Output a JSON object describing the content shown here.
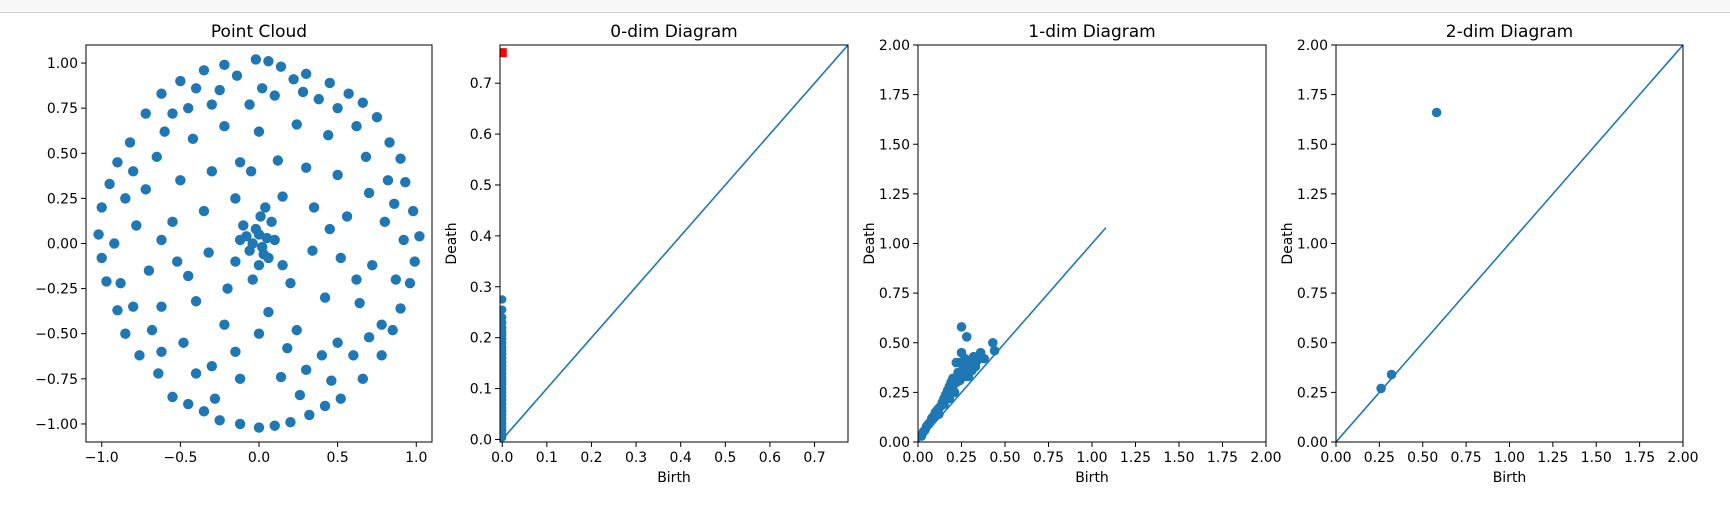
{
  "chart_data": [
    {
      "type": "scatter",
      "title": "Point Cloud",
      "xlabel": "",
      "ylabel": "",
      "xlim": [
        -1.1,
        1.1
      ],
      "ylim": [
        -1.1,
        1.1
      ],
      "xticks": [
        -1.0,
        -0.5,
        0.0,
        0.5,
        1.0
      ],
      "xtick_labels": [
        "−1.0",
        "−0.5",
        "0.0",
        "0.5",
        "1.0"
      ],
      "yticks": [
        -1.0,
        -0.75,
        -0.5,
        -0.25,
        0.0,
        0.25,
        0.5,
        0.75,
        1.0
      ],
      "ytick_labels": [
        "−1.00",
        "−0.75",
        "−0.50",
        "−0.25",
        "0.00",
        "0.25",
        "0.50",
        "0.75",
        "1.00"
      ],
      "grid": false,
      "color": "#1f77b4",
      "points": [
        [
          -0.02,
          1.02
        ],
        [
          0.06,
          1.01
        ],
        [
          -0.22,
          0.99
        ],
        [
          0.14,
          0.98
        ],
        [
          -0.35,
          0.96
        ],
        [
          0.3,
          0.94
        ],
        [
          -0.5,
          0.9
        ],
        [
          0.45,
          0.89
        ],
        [
          -0.62,
          0.83
        ],
        [
          0.57,
          0.83
        ],
        [
          -0.14,
          0.93
        ],
        [
          0.22,
          0.91
        ],
        [
          -0.4,
          0.86
        ],
        [
          0.38,
          0.8
        ],
        [
          0.66,
          0.78
        ],
        [
          -0.72,
          0.72
        ],
        [
          0.75,
          0.7
        ],
        [
          -0.3,
          0.77
        ],
        [
          0.1,
          0.82
        ],
        [
          0.02,
          0.86
        ],
        [
          -0.06,
          0.77
        ],
        [
          0.5,
          0.75
        ],
        [
          -0.55,
          0.72
        ],
        [
          -0.82,
          0.56
        ],
        [
          0.83,
          0.56
        ],
        [
          -0.9,
          0.45
        ],
        [
          0.9,
          0.47
        ],
        [
          -0.95,
          0.33
        ],
        [
          0.93,
          0.34
        ],
        [
          -1.0,
          0.2
        ],
        [
          0.98,
          0.18
        ],
        [
          -1.02,
          0.05
        ],
        [
          1.02,
          0.04
        ],
        [
          -1.0,
          -0.08
        ],
        [
          0.99,
          -0.1
        ],
        [
          -0.97,
          -0.21
        ],
        [
          0.96,
          -0.22
        ],
        [
          -0.9,
          -0.37
        ],
        [
          0.9,
          -0.36
        ],
        [
          -0.85,
          -0.5
        ],
        [
          0.85,
          -0.48
        ],
        [
          -0.76,
          -0.62
        ],
        [
          0.78,
          -0.62
        ],
        [
          -0.64,
          -0.72
        ],
        [
          0.66,
          -0.75
        ],
        [
          -0.55,
          -0.85
        ],
        [
          0.52,
          -0.86
        ],
        [
          -0.45,
          -0.89
        ],
        [
          0.42,
          -0.9
        ],
        [
          -0.25,
          -0.98
        ],
        [
          0.2,
          -0.99
        ],
        [
          -0.12,
          -1.0
        ],
        [
          0.1,
          -1.01
        ],
        [
          0.0,
          -1.02
        ],
        [
          -0.35,
          -0.93
        ],
        [
          0.32,
          -0.95
        ],
        [
          -0.65,
          0.48
        ],
        [
          0.68,
          0.48
        ],
        [
          -0.72,
          0.3
        ],
        [
          0.7,
          0.28
        ],
        [
          -0.78,
          0.1
        ],
        [
          0.8,
          0.12
        ],
        [
          -0.7,
          -0.15
        ],
        [
          0.72,
          -0.12
        ],
        [
          -0.62,
          -0.35
        ],
        [
          0.64,
          -0.33
        ],
        [
          -0.48,
          -0.55
        ],
        [
          0.5,
          -0.55
        ],
        [
          -0.3,
          -0.68
        ],
        [
          0.3,
          -0.7
        ],
        [
          -0.12,
          -0.75
        ],
        [
          0.14,
          -0.74
        ],
        [
          -0.42,
          0.58
        ],
        [
          0.44,
          0.6
        ],
        [
          -0.22,
          0.65
        ],
        [
          0.24,
          0.66
        ],
        [
          0.0,
          0.62
        ],
        [
          -0.5,
          0.35
        ],
        [
          0.5,
          0.38
        ],
        [
          -0.55,
          0.12
        ],
        [
          0.56,
          0.15
        ],
        [
          -0.52,
          -0.1
        ],
        [
          0.52,
          -0.08
        ],
        [
          -0.4,
          -0.32
        ],
        [
          0.42,
          -0.3
        ],
        [
          -0.22,
          -0.45
        ],
        [
          0.24,
          -0.48
        ],
        [
          0.0,
          -0.5
        ],
        [
          -0.3,
          0.4
        ],
        [
          0.3,
          0.42
        ],
        [
          -0.35,
          0.18
        ],
        [
          0.35,
          0.2
        ],
        [
          -0.32,
          -0.05
        ],
        [
          0.34,
          -0.04
        ],
        [
          -0.2,
          -0.25
        ],
        [
          0.2,
          -0.22
        ],
        [
          -0.12,
          0.45
        ],
        [
          0.12,
          0.46
        ],
        [
          -0.15,
          0.25
        ],
        [
          0.15,
          0.26
        ],
        [
          -0.1,
          0.1
        ],
        [
          0.08,
          0.12
        ],
        [
          0.0,
          0.05
        ],
        [
          0.02,
          -0.02
        ],
        [
          -0.04,
          0.0
        ],
        [
          0.05,
          0.03
        ],
        [
          -0.02,
          0.08
        ],
        [
          0.03,
          -0.06
        ],
        [
          -0.06,
          -0.04
        ],
        [
          0.06,
          -0.08
        ],
        [
          -0.08,
          0.04
        ],
        [
          0.01,
          0.15
        ],
        [
          0.0,
          -0.12
        ],
        [
          -0.15,
          -0.1
        ],
        [
          0.15,
          -0.12
        ],
        [
          0.1,
          0.02
        ],
        [
          -0.12,
          0.02
        ],
        [
          0.04,
          0.2
        ],
        [
          -0.04,
          -0.2
        ],
        [
          -0.85,
          0.25
        ],
        [
          0.86,
          0.22
        ],
        [
          -0.88,
          -0.22
        ],
        [
          0.87,
          -0.2
        ],
        [
          -0.6,
          0.62
        ],
        [
          0.62,
          0.65
        ],
        [
          -0.62,
          -0.6
        ],
        [
          0.6,
          -0.62
        ],
        [
          -0.8,
          0.4
        ],
        [
          0.78,
          -0.45
        ],
        [
          -0.25,
          0.85
        ],
        [
          0.28,
          0.84
        ],
        [
          -0.28,
          -0.86
        ],
        [
          0.26,
          -0.84
        ],
        [
          -0.45,
          0.75
        ],
        [
          0.46,
          -0.76
        ],
        [
          -0.15,
          -0.6
        ],
        [
          0.18,
          -0.58
        ],
        [
          -0.4,
          -0.72
        ],
        [
          0.4,
          -0.62
        ],
        [
          -0.68,
          -0.48
        ],
        [
          0.7,
          -0.52
        ],
        [
          -0.05,
          0.4
        ],
        [
          0.06,
          -0.38
        ],
        [
          -0.45,
          -0.18
        ],
        [
          0.45,
          0.08
        ],
        [
          -0.62,
          0.02
        ],
        [
          0.62,
          -0.2
        ],
        [
          0.82,
          0.35
        ],
        [
          -0.8,
          -0.35
        ],
        [
          0.92,
          0.02
        ],
        [
          -0.92,
          0.0
        ]
      ]
    },
    {
      "type": "scatter",
      "title": "0-dim Diagram",
      "xlabel": "Birth",
      "ylabel": "Death",
      "xlim": [
        -0.005,
        0.775
      ],
      "ylim": [
        -0.005,
        0.775
      ],
      "xticks": [
        0,
        0.1,
        0.2,
        0.3,
        0.4,
        0.5,
        0.6,
        0.7
      ],
      "xtick_labels": [
        "0.0",
        "0.1",
        "0.2",
        "0.3",
        "0.4",
        "0.5",
        "0.6",
        "0.7"
      ],
      "yticks": [
        0,
        0.1,
        0.2,
        0.3,
        0.4,
        0.5,
        0.6,
        0.7
      ],
      "ytick_labels": [
        "0.0",
        "0.1",
        "0.2",
        "0.3",
        "0.4",
        "0.5",
        "0.6",
        "0.7"
      ],
      "diagonal": [
        0,
        0.775
      ],
      "color": "#1f77b4",
      "points": [
        [
          0,
          0.275
        ],
        [
          0,
          0.255
        ],
        [
          0,
          0.24
        ],
        [
          0,
          0.23
        ],
        [
          0,
          0.22
        ],
        [
          0,
          0.212
        ],
        [
          0,
          0.205
        ],
        [
          0,
          0.198
        ],
        [
          0,
          0.19
        ],
        [
          0,
          0.182
        ],
        [
          0,
          0.175
        ],
        [
          0,
          0.168
        ],
        [
          0,
          0.16
        ],
        [
          0,
          0.152
        ],
        [
          0,
          0.145
        ],
        [
          0,
          0.138
        ],
        [
          0,
          0.13
        ],
        [
          0,
          0.122
        ],
        [
          0,
          0.115
        ],
        [
          0,
          0.108
        ],
        [
          0,
          0.1
        ],
        [
          0,
          0.092
        ],
        [
          0,
          0.085
        ],
        [
          0,
          0.078
        ],
        [
          0,
          0.07
        ],
        [
          0,
          0.062
        ],
        [
          0,
          0.055
        ],
        [
          0,
          0.048
        ],
        [
          0,
          0.04
        ],
        [
          0,
          0.032
        ],
        [
          0,
          0.025
        ],
        [
          0,
          0.018
        ],
        [
          0,
          0.01
        ],
        [
          0,
          0.004
        ]
      ],
      "infinite_points": [
        [
          0,
          0.76
        ]
      ],
      "infinite_color": "#ff0000"
    },
    {
      "type": "scatter",
      "title": "1-dim Diagram",
      "xlabel": "Birth",
      "ylabel": "Death",
      "xlim": [
        0,
        2.0
      ],
      "ylim": [
        0,
        2.0
      ],
      "xticks": [
        0,
        0.25,
        0.5,
        0.75,
        1.0,
        1.25,
        1.5,
        1.75,
        2.0
      ],
      "xtick_labels": [
        "0.00",
        "0.25",
        "0.50",
        "0.75",
        "1.00",
        "1.25",
        "1.50",
        "1.75",
        "2.00"
      ],
      "yticks": [
        0,
        0.25,
        0.5,
        0.75,
        1.0,
        1.25,
        1.5,
        1.75,
        2.0
      ],
      "ytick_labels": [
        "0.00",
        "0.25",
        "0.50",
        "0.75",
        "1.00",
        "1.25",
        "1.50",
        "1.75",
        "2.00"
      ],
      "diagonal": [
        0,
        1.08
      ],
      "color": "#1f77b4",
      "points": [
        [
          0.02,
          0.03
        ],
        [
          0.03,
          0.05
        ],
        [
          0.04,
          0.06
        ],
        [
          0.05,
          0.08
        ],
        [
          0.06,
          0.09
        ],
        [
          0.07,
          0.1
        ],
        [
          0.08,
          0.12
        ],
        [
          0.09,
          0.13
        ],
        [
          0.1,
          0.15
        ],
        [
          0.11,
          0.16
        ],
        [
          0.12,
          0.17
        ],
        [
          0.13,
          0.18
        ],
        [
          0.14,
          0.2
        ],
        [
          0.15,
          0.22
        ],
        [
          0.16,
          0.24
        ],
        [
          0.17,
          0.26
        ],
        [
          0.18,
          0.28
        ],
        [
          0.19,
          0.3
        ],
        [
          0.2,
          0.32
        ],
        [
          0.21,
          0.25
        ],
        [
          0.22,
          0.3
        ],
        [
          0.23,
          0.35
        ],
        [
          0.24,
          0.4
        ],
        [
          0.25,
          0.45
        ],
        [
          0.26,
          0.38
        ],
        [
          0.27,
          0.42
        ],
        [
          0.28,
          0.36
        ],
        [
          0.29,
          0.33
        ],
        [
          0.3,
          0.4
        ],
        [
          0.31,
          0.36
        ],
        [
          0.32,
          0.43
        ],
        [
          0.33,
          0.38
        ],
        [
          0.34,
          0.41
        ],
        [
          0.36,
          0.45
        ],
        [
          0.38,
          0.42
        ],
        [
          0.43,
          0.5
        ],
        [
          0.44,
          0.46
        ],
        [
          0.25,
          0.58
        ],
        [
          0.28,
          0.53
        ],
        [
          0.22,
          0.4
        ],
        [
          0.18,
          0.22
        ],
        [
          0.2,
          0.27
        ],
        [
          0.15,
          0.19
        ],
        [
          0.12,
          0.14
        ],
        [
          0.24,
          0.31
        ],
        [
          0.27,
          0.33
        ]
      ]
    },
    {
      "type": "scatter",
      "title": "2-dim Diagram",
      "xlabel": "Birth",
      "ylabel": "Death",
      "xlim": [
        0,
        2.0
      ],
      "ylim": [
        0,
        2.0
      ],
      "xticks": [
        0,
        0.25,
        0.5,
        0.75,
        1.0,
        1.25,
        1.5,
        1.75,
        2.0
      ],
      "xtick_labels": [
        "0.00",
        "0.25",
        "0.50",
        "0.75",
        "1.00",
        "1.25",
        "1.50",
        "1.75",
        "2.00"
      ],
      "yticks": [
        0,
        0.25,
        0.5,
        0.75,
        1.0,
        1.25,
        1.5,
        1.75,
        2.0
      ],
      "ytick_labels": [
        "0.00",
        "0.25",
        "0.50",
        "0.75",
        "1.00",
        "1.25",
        "1.50",
        "1.75",
        "2.00"
      ],
      "diagonal": [
        0,
        2.0
      ],
      "color": "#1f77b4",
      "points": [
        [
          0.58,
          1.66
        ],
        [
          0.26,
          0.27
        ],
        [
          0.32,
          0.34
        ]
      ]
    }
  ]
}
